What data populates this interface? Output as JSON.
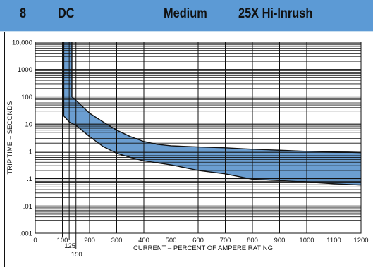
{
  "header": {
    "number": "8",
    "type": "DC",
    "speed": "Medium",
    "rating": "25X Hi-Inrush"
  },
  "colors": {
    "header_bg": "#5c9ad5",
    "band_fill": "#5b93cc",
    "grid": "#111111"
  },
  "chart_data": {
    "type": "area",
    "xlabel": "CURRENT – PERCENT OF AMPERE RATING",
    "ylabel": "TRIP TIME – SECONDS",
    "xlim": [
      0,
      1200
    ],
    "ylim": [
      0.001,
      10000
    ],
    "yscale": "log",
    "grid": true,
    "x_ticks": [
      0,
      100,
      200,
      300,
      400,
      500,
      600,
      700,
      800,
      900,
      1000,
      1100,
      1200
    ],
    "x_tick_labels": [
      "0",
      "100",
      "200",
      "300",
      "400",
      "500",
      "600",
      "700",
      "800",
      "900",
      "1000",
      "1100",
      "1200"
    ],
    "x_extra_ticks": [
      125,
      150
    ],
    "x_extra_tick_labels": [
      "125",
      "150"
    ],
    "y_ticks": [
      0.001,
      0.01,
      0.1,
      1,
      10,
      100,
      1000,
      10000
    ],
    "y_tick_labels": [
      ".001",
      ".01",
      ".1",
      "1",
      "10",
      "100",
      "1000",
      "10,000"
    ],
    "band": {
      "upper": [
        {
          "x": 135,
          "y": 10000
        },
        {
          "x": 135,
          "y": 100
        },
        {
          "x": 160,
          "y": 60
        },
        {
          "x": 200,
          "y": 25
        },
        {
          "x": 250,
          "y": 12
        },
        {
          "x": 300,
          "y": 6
        },
        {
          "x": 350,
          "y": 3.5
        },
        {
          "x": 400,
          "y": 2.3
        },
        {
          "x": 450,
          "y": 1.8
        },
        {
          "x": 500,
          "y": 1.6
        },
        {
          "x": 600,
          "y": 1.45
        },
        {
          "x": 700,
          "y": 1.35
        },
        {
          "x": 800,
          "y": 1.2
        },
        {
          "x": 900,
          "y": 1.1
        },
        {
          "x": 1000,
          "y": 1.0
        },
        {
          "x": 1100,
          "y": 0.95
        },
        {
          "x": 1200,
          "y": 0.9
        }
      ],
      "lower": [
        {
          "x": 105,
          "y": 10000
        },
        {
          "x": 105,
          "y": 20
        },
        {
          "x": 125,
          "y": 12
        },
        {
          "x": 150,
          "y": 9
        },
        {
          "x": 200,
          "y": 3.5
        },
        {
          "x": 250,
          "y": 1.5
        },
        {
          "x": 300,
          "y": 0.85
        },
        {
          "x": 350,
          "y": 0.6
        },
        {
          "x": 400,
          "y": 0.45
        },
        {
          "x": 500,
          "y": 0.32
        },
        {
          "x": 600,
          "y": 0.2
        },
        {
          "x": 700,
          "y": 0.15
        },
        {
          "x": 800,
          "y": 0.095
        },
        {
          "x": 900,
          "y": 0.085
        },
        {
          "x": 1000,
          "y": 0.075
        },
        {
          "x": 1100,
          "y": 0.065
        },
        {
          "x": 1200,
          "y": 0.058
        }
      ]
    }
  }
}
